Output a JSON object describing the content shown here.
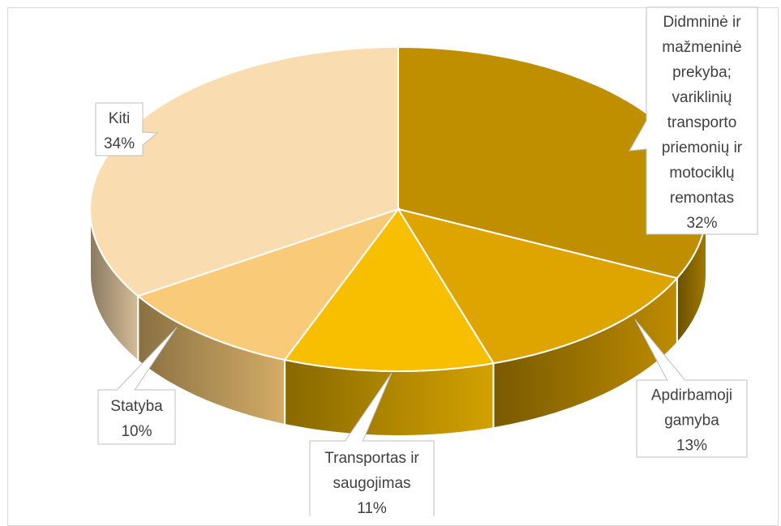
{
  "chart_data": {
    "type": "pie",
    "title": "",
    "style": "3d-exploded-none",
    "slices": [
      {
        "label_lines": [
          "Didmninė ir",
          "mažmeninė",
          "prekyba;",
          "variklinių",
          "transporto",
          "priemonių ir",
          "motociklų",
          "remontas"
        ],
        "value": 32,
        "value_text": "32%",
        "color": "#bf8f00"
      },
      {
        "label_lines": [
          "Apdirbamoji",
          "gamyba"
        ],
        "value": 13,
        "value_text": "13%",
        "color": "#dea400"
      },
      {
        "label_lines": [
          "Transportas ir",
          "saugojimas"
        ],
        "value": 11,
        "value_text": "11%",
        "color": "#f8bf00"
      },
      {
        "label_lines": [
          "Statyba"
        ],
        "value": 10,
        "value_text": "10%",
        "color": "#f9cb78"
      },
      {
        "label_lines": [
          "Kiti"
        ],
        "value": 34,
        "value_text": "34%",
        "color": "#f9ddb0"
      }
    ],
    "legend": "none",
    "data_labels": "callouts"
  }
}
